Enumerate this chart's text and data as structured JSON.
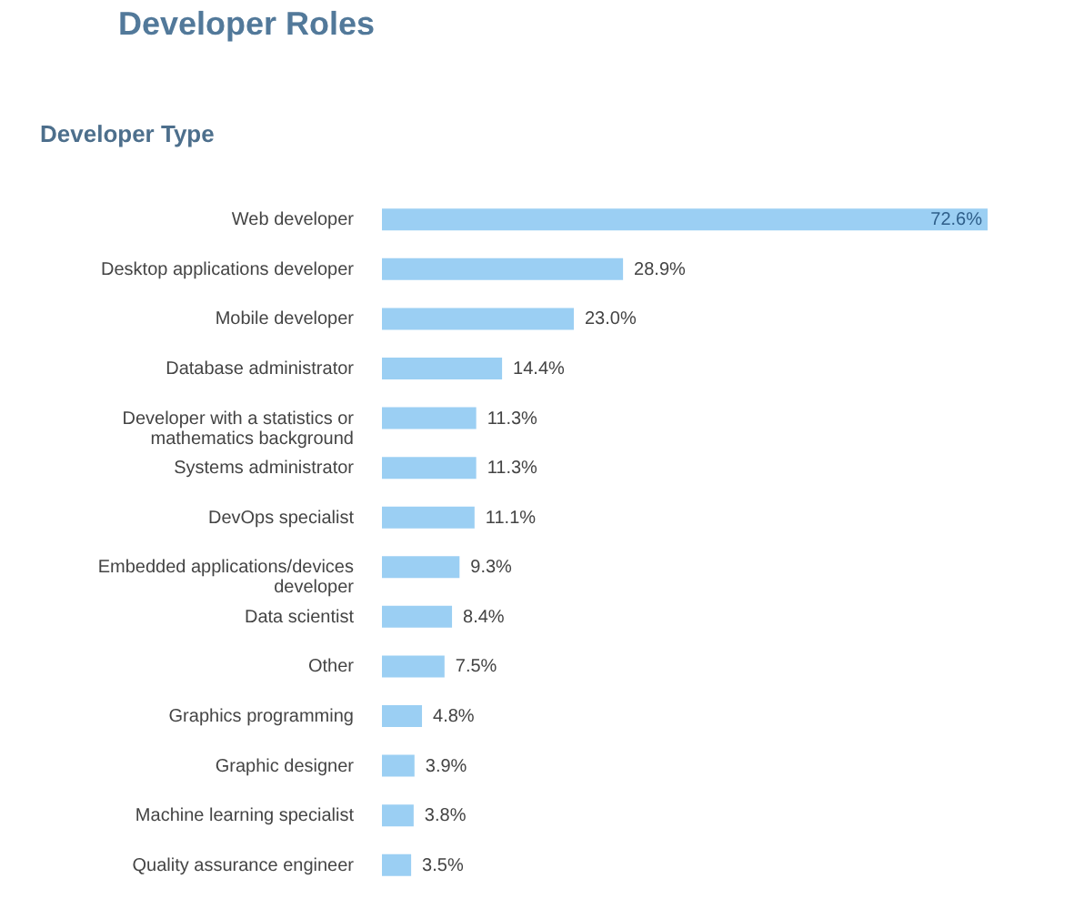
{
  "chart_data": {
    "type": "bar",
    "orientation": "horizontal",
    "title": "Developer Roles",
    "subtitle": "Developer Type",
    "categories": [
      "Web developer",
      "Desktop applications developer",
      "Mobile developer",
      "Database administrator",
      "Developer with a statistics or mathematics background",
      "Systems administrator",
      "DevOps specialist",
      "Embedded applications/devices developer",
      "Data scientist",
      "Other",
      "Graphics programming",
      "Graphic designer",
      "Machine learning specialist",
      "Quality assurance engineer"
    ],
    "values": [
      72.6,
      28.9,
      23.0,
      14.4,
      11.3,
      11.3,
      11.1,
      9.3,
      8.4,
      7.5,
      4.8,
      3.9,
      3.8,
      3.5
    ],
    "value_labels": [
      "72.6%",
      "28.9%",
      "23.0%",
      "14.4%",
      "11.3%",
      "11.3%",
      "11.1%",
      "9.3%",
      "8.4%",
      "7.5%",
      "4.8%",
      "3.9%",
      "3.8%",
      "3.5%"
    ],
    "color": "#9bcff3",
    "tick_labels": "y"
  }
}
